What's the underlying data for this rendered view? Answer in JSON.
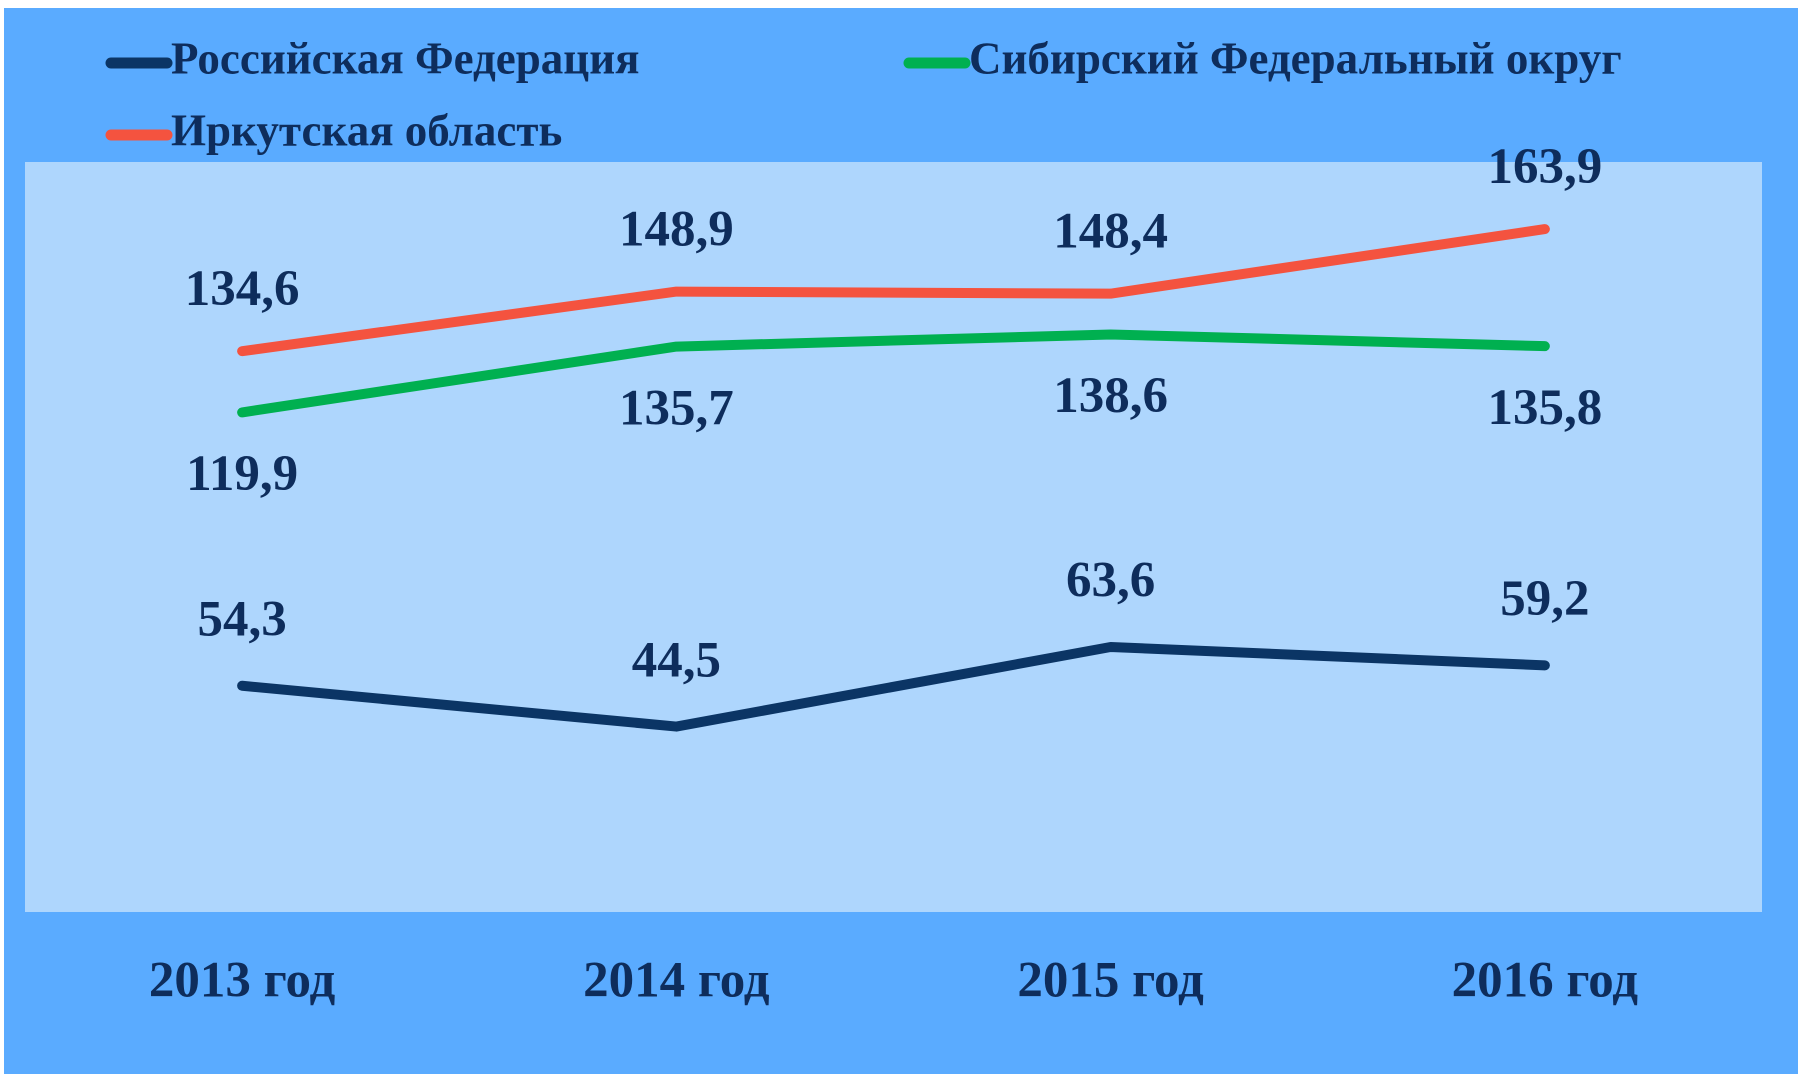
{
  "chart_data": {
    "type": "line",
    "categories": [
      "2013 год",
      "2014 год",
      "2015 год",
      "2016 год"
    ],
    "series": [
      {
        "name": "Российская Федерация",
        "color": "#0b3565",
        "values": [
          54.3,
          44.5,
          63.6,
          59.2
        ],
        "value_labels": [
          "54,3",
          "44,5",
          "63,6",
          "59,2"
        ]
      },
      {
        "name": "Сибирский Федеральный округ",
        "color": "#00b050",
        "values": [
          119.9,
          135.7,
          138.6,
          135.8
        ],
        "value_labels": [
          "119,9",
          "135,7",
          "138,6",
          "135,8"
        ]
      },
      {
        "name": "Иркутская область",
        "color": "#f4533f",
        "values": [
          134.6,
          148.9,
          148.4,
          163.9
        ],
        "value_labels": [
          "134,6",
          "148,9",
          "148,4",
          "163,9"
        ]
      }
    ],
    "ylim": [
      0,
      180
    ]
  }
}
